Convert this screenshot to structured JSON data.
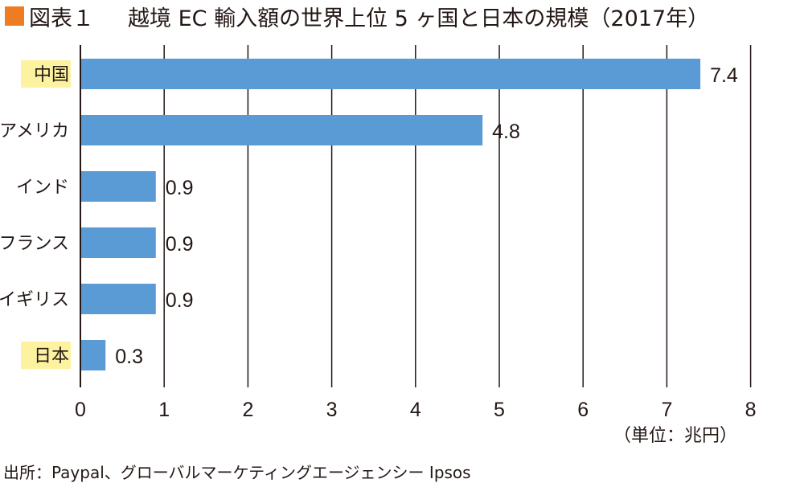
{
  "header": {
    "figure_label": "図表１",
    "title": "越境 EC 輸入額の世界上位 5 ヶ国と日本の規模（2017年）",
    "marker_color": "#ee7c22"
  },
  "unit_label": "（単位：兆円）",
  "source": "出所：Paypal、グローバルマーケティングエージェンシー Ipsos",
  "colors": {
    "bar": "#5b9bd5",
    "highlight": "#fdf2a0",
    "grid": "#231815"
  },
  "chart_data": {
    "type": "bar",
    "orientation": "horizontal",
    "title": "越境 EC 輸入額の世界上位 5 ヶ国と日本の規模（2017年）",
    "categories": [
      "中国",
      "アメリカ",
      "インド",
      "フランス",
      "イギリス",
      "日本"
    ],
    "values": [
      7.4,
      4.8,
      0.9,
      0.9,
      0.9,
      0.3
    ],
    "data_labels": [
      "7.4",
      "4.8",
      "0.9",
      "0.9",
      "0.9",
      "0.3"
    ],
    "highlighted_categories": [
      "中国",
      "日本"
    ],
    "xlim": [
      0,
      8
    ],
    "x_ticks": [
      "0",
      "1",
      "2",
      "3",
      "4",
      "5",
      "6",
      "7",
      "8"
    ],
    "xlabel": "",
    "ylabel": "",
    "unit": "（単位：兆円）",
    "grid": "vertical"
  }
}
